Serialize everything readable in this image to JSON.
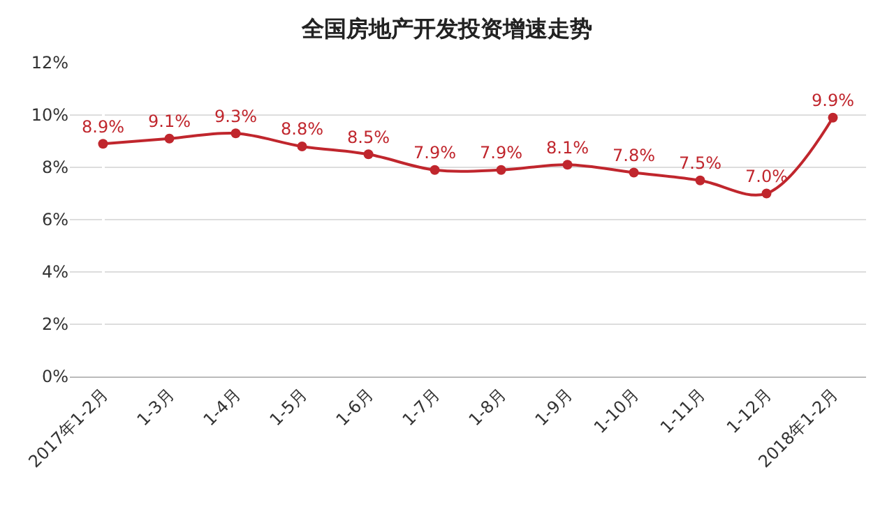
{
  "chart_data": {
    "type": "line",
    "title": "全国房地产开发投资增速走势",
    "categories": [
      "2017年1-2月",
      "1-3月",
      "1-4月",
      "1-5月",
      "1-6月",
      "1-7月",
      "1-8月",
      "1-9月",
      "1-10月",
      "1-11月",
      "1-12月",
      "2018年1-2月"
    ],
    "series": [
      {
        "color": "#c0262d",
        "values": [
          8.9,
          9.1,
          9.3,
          8.8,
          8.5,
          7.9,
          7.9,
          8.1,
          7.8,
          7.5,
          7.0,
          9.9
        ],
        "value_labels": [
          "8.9%",
          "9.1%",
          "9.3%",
          "8.8%",
          "8.5%",
          "7.9%",
          "7.9%",
          "8.1%",
          "7.8%",
          "7.5%",
          "7.0%",
          "9.9%"
        ]
      }
    ],
    "ylim": [
      0,
      12
    ],
    "yticks": [
      {
        "value": 0,
        "label": "0%"
      },
      {
        "value": 2,
        "label": "2%"
      },
      {
        "value": 4,
        "label": "4%"
      },
      {
        "value": 6,
        "label": "6%"
      },
      {
        "value": 8,
        "label": "8%"
      },
      {
        "value": 10,
        "label": "10%"
      },
      {
        "value": 12,
        "label": "12%"
      }
    ],
    "grid": "y",
    "marker": "circle",
    "line_style": "solid",
    "legend": false
  }
}
